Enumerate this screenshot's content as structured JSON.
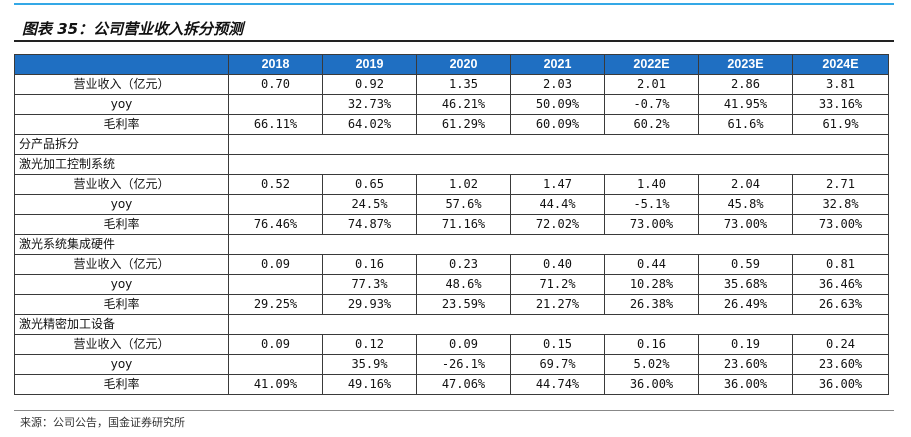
{
  "title": "图表 35：公司营业收入拆分预测",
  "headers": [
    "",
    "2018",
    "2019",
    "2020",
    "2021",
    "2022E",
    "2023E",
    "2024E"
  ],
  "rows": [
    {
      "type": "data",
      "label": "营业收入（亿元）",
      "values": [
        "0.70",
        "0.92",
        "1.35",
        "2.03",
        "2.01",
        "2.86",
        "3.81"
      ]
    },
    {
      "type": "data",
      "label": "yoy",
      "values": [
        "",
        "32.73%",
        "46.21%",
        "50.09%",
        "-0.7%",
        "41.95%",
        "33.16%"
      ]
    },
    {
      "type": "data",
      "label": "毛利率",
      "values": [
        "66.11%",
        "64.02%",
        "61.29%",
        "60.09%",
        "60.2%",
        "61.6%",
        "61.9%"
      ]
    },
    {
      "type": "section",
      "label": "分产品拆分"
    },
    {
      "type": "section",
      "label": "激光加工控制系统"
    },
    {
      "type": "data",
      "label": "营业收入（亿元）",
      "values": [
        "0.52",
        "0.65",
        "1.02",
        "1.47",
        "1.40",
        "2.04",
        "2.71"
      ]
    },
    {
      "type": "data",
      "label": "yoy",
      "values": [
        "",
        "24.5%",
        "57.6%",
        "44.4%",
        "-5.1%",
        "45.8%",
        "32.8%"
      ]
    },
    {
      "type": "data",
      "label": "毛利率",
      "values": [
        "76.46%",
        "74.87%",
        "71.16%",
        "72.02%",
        "73.00%",
        "73.00%",
        "73.00%"
      ]
    },
    {
      "type": "section",
      "label": "激光系统集成硬件"
    },
    {
      "type": "data",
      "label": "营业收入（亿元）",
      "values": [
        "0.09",
        "0.16",
        "0.23",
        "0.40",
        "0.44",
        "0.59",
        "0.81"
      ]
    },
    {
      "type": "data",
      "label": "yoy",
      "values": [
        "",
        "77.3%",
        "48.6%",
        "71.2%",
        "10.28%",
        "35.68%",
        "36.46%"
      ]
    },
    {
      "type": "data",
      "label": "毛利率",
      "values": [
        "29.25%",
        "29.93%",
        "23.59%",
        "21.27%",
        "26.38%",
        "26.49%",
        "26.63%"
      ]
    },
    {
      "type": "section",
      "label": "激光精密加工设备"
    },
    {
      "type": "data",
      "label": "营业收入（亿元）",
      "values": [
        "0.09",
        "0.12",
        "0.09",
        "0.15",
        "0.16",
        "0.19",
        "0.24"
      ]
    },
    {
      "type": "data",
      "label": "yoy",
      "values": [
        "",
        "35.9%",
        "-26.1%",
        "69.7%",
        "5.02%",
        "23.60%",
        "23.60%"
      ]
    },
    {
      "type": "data",
      "label": "毛利率",
      "values": [
        "41.09%",
        "49.16%",
        "47.06%",
        "44.74%",
        "36.00%",
        "36.00%",
        "36.00%"
      ]
    }
  ],
  "source": "来源：公司公告，国金证券研究所",
  "colors": {
    "header_bg": "#1f6fc2",
    "accent_rule": "#34a8e6"
  }
}
